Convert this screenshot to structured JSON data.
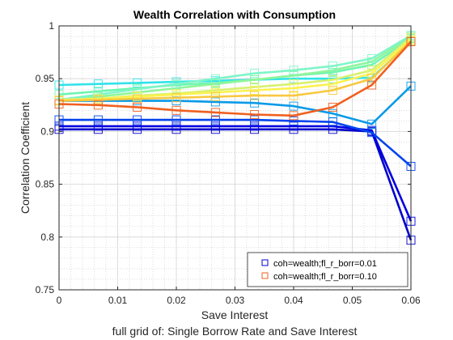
{
  "chart_data": {
    "type": "line",
    "title": "Wealth Correlation with Consumption",
    "xlabel": "Save Interest",
    "ylabel": "Correlation Coefficient",
    "subtitle": "full grid of: Single Borrow Rate and Save Interest",
    "xlim": [
      0,
      0.06
    ],
    "ylim": [
      0.75,
      1
    ],
    "xticks": [
      0,
      0.01,
      0.02,
      0.03,
      0.04,
      0.05,
      0.06
    ],
    "xtick_labels": [
      "0",
      "0.01",
      "0.02",
      "0.03",
      "0.04",
      "0.05",
      "0.06"
    ],
    "yticks": [
      0.75,
      0.8,
      0.85,
      0.9,
      0.95,
      1
    ],
    "ytick_labels": [
      "0.75",
      "0.8",
      "0.85",
      "0.9",
      "0.95",
      "1"
    ],
    "grid": true,
    "minor_grid": true,
    "marker": "square",
    "x": [
      0,
      0.00667,
      0.01333,
      0.02,
      0.02667,
      0.03333,
      0.04,
      0.04667,
      0.05333,
      0.06
    ],
    "series": [
      {
        "name": "coh=wealth;fl_r_borr=0.01",
        "color": "#0000cc",
        "values": [
          0.902,
          0.902,
          0.902,
          0.902,
          0.902,
          0.902,
          0.902,
          0.902,
          0.9,
          0.797
        ]
      },
      {
        "color": "#0000e0",
        "values": [
          0.905,
          0.905,
          0.905,
          0.905,
          0.905,
          0.905,
          0.905,
          0.905,
          0.901,
          0.815
        ]
      },
      {
        "color": "#0044ee",
        "values": [
          0.911,
          0.911,
          0.911,
          0.911,
          0.911,
          0.911,
          0.91,
          0.909,
          0.899,
          0.867
        ]
      },
      {
        "color": "#0a9ae8",
        "values": [
          0.929,
          0.929,
          0.929,
          0.929,
          0.928,
          0.927,
          0.924,
          0.917,
          0.907,
          0.943
        ]
      },
      {
        "color": "#30e3ea",
        "values": [
          0.944,
          0.945,
          0.946,
          0.947,
          0.948,
          0.949,
          0.95,
          0.95,
          0.951,
          0.985
        ]
      },
      {
        "color": "#6ff5b0",
        "values": [
          0.935,
          0.938,
          0.941,
          0.944,
          0.946,
          0.949,
          0.953,
          0.956,
          0.963,
          0.988
        ]
      },
      {
        "color": "#90f59a",
        "values": [
          0.929,
          0.933,
          0.937,
          0.941,
          0.945,
          0.949,
          0.953,
          0.958,
          0.966,
          0.99
        ]
      },
      {
        "color": "#7ff5c8",
        "values": [
          0.93,
          0.935,
          0.94,
          0.945,
          0.95,
          0.955,
          0.958,
          0.962,
          0.969,
          0.991
        ]
      },
      {
        "color": "#d8f070",
        "values": [
          0.929,
          0.931,
          0.934,
          0.936,
          0.939,
          0.942,
          0.945,
          0.949,
          0.958,
          0.989
        ]
      },
      {
        "color": "#fbf250",
        "values": [
          0.93,
          0.931,
          0.933,
          0.935,
          0.937,
          0.939,
          0.941,
          0.945,
          0.955,
          0.987
        ]
      },
      {
        "color": "#f8c840",
        "values": [
          0.929,
          0.93,
          0.931,
          0.932,
          0.933,
          0.934,
          0.934,
          0.939,
          0.95,
          0.986
        ]
      },
      {
        "name": "coh=wealth;fl_r_borr=0.10",
        "color": "#f06020",
        "values": [
          0.926,
          0.925,
          0.923,
          0.92,
          0.918,
          0.916,
          0.915,
          0.923,
          0.944,
          0.985
        ]
      }
    ],
    "legend": {
      "location": "bottom-right",
      "entries": [
        {
          "label": "coh=wealth;fl_r_borr=0.01",
          "color": "#0000cc"
        },
        {
          "label": "coh=wealth;fl_r_borr=0.10",
          "color": "#f06020"
        }
      ]
    }
  }
}
